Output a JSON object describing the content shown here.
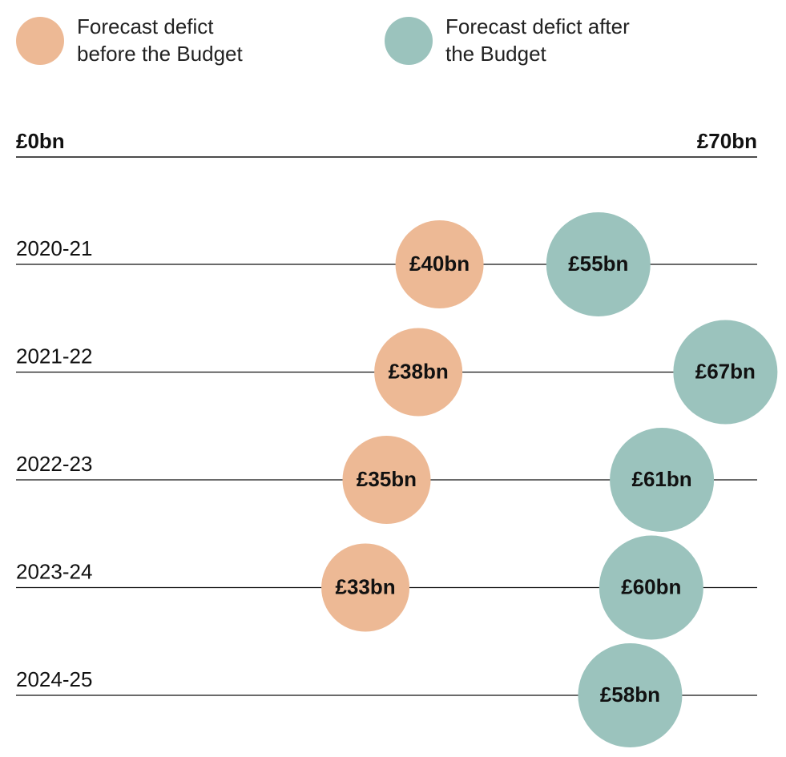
{
  "chart_data": {
    "type": "dot",
    "categories": [
      "2020-21",
      "2021-22",
      "2022-23",
      "2023-24",
      "2024-25"
    ],
    "xlim": [
      0,
      70
    ],
    "xticks": [
      {
        "value": 0,
        "label": "£0bn"
      },
      {
        "value": 70,
        "label": "£70bn"
      }
    ],
    "series": [
      {
        "name": "Forecast defict before the Budget",
        "color": "#edb995",
        "values": [
          40,
          38,
          35,
          33,
          null
        ],
        "value_labels": [
          "£40bn",
          "£38bn",
          "£35bn",
          "£33bn",
          null
        ]
      },
      {
        "name": "Forecast defict after the Budget",
        "color": "#9bc3bd",
        "values": [
          55,
          67,
          61,
          60,
          58
        ],
        "value_labels": [
          "£55bn",
          "£67bn",
          "£61bn",
          "£60bn",
          "£58bn"
        ]
      }
    ]
  }
}
